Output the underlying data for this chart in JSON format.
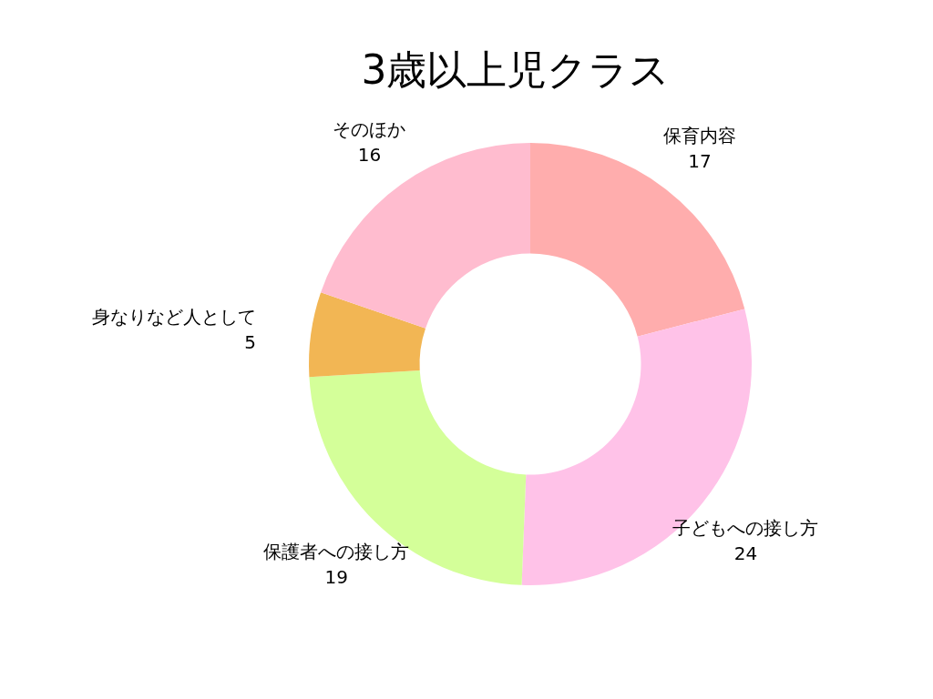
{
  "chart_data": {
    "type": "donut",
    "title": "3歳以上児クラス",
    "categories": [
      "保育内容",
      "子どもへの接し方",
      "保護者への接し方",
      "身なりなど人として",
      "そのほか"
    ],
    "values": [
      17,
      24,
      19,
      5,
      16
    ],
    "colors": [
      "#ffadad",
      "#ffc2e8",
      "#d4ff99",
      "#f2b654",
      "#ffbccf"
    ],
    "data_labels": true
  }
}
